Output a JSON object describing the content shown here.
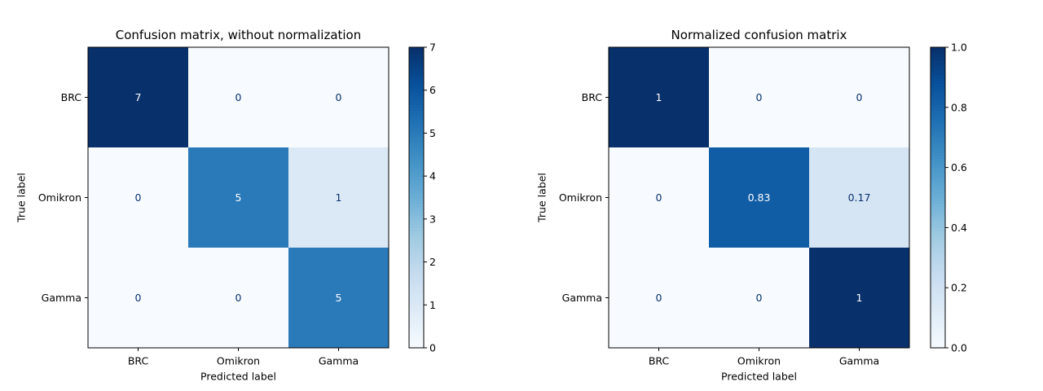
{
  "chart_data": [
    {
      "type": "heatmap",
      "title": "Confusion matrix, without normalization",
      "xlabel": "Predicted label",
      "ylabel": "True label",
      "x_categories": [
        "BRC",
        "Omikron",
        "Gamma"
      ],
      "y_categories": [
        "BRC",
        "Omikron",
        "Gamma"
      ],
      "values": [
        [
          7,
          0,
          0
        ],
        [
          0,
          5,
          1
        ],
        [
          0,
          0,
          5
        ]
      ],
      "cell_labels": [
        [
          "7",
          "0",
          "0"
        ],
        [
          "0",
          "5",
          "1"
        ],
        [
          "0",
          "0",
          "5"
        ]
      ],
      "colormap": "Blues",
      "colorbar": {
        "range": [
          0,
          7
        ],
        "ticks": [
          0,
          1,
          2,
          3,
          4,
          5,
          6,
          7
        ],
        "tick_labels": [
          "0",
          "1",
          "2",
          "3",
          "4",
          "5",
          "6",
          "7"
        ]
      },
      "grid": false
    },
    {
      "type": "heatmap",
      "title": "Normalized confusion matrix",
      "xlabel": "Predicted label",
      "ylabel": "True label",
      "x_categories": [
        "BRC",
        "Omikron",
        "Gamma"
      ],
      "y_categories": [
        "BRC",
        "Omikron",
        "Gamma"
      ],
      "values": [
        [
          1,
          0,
          0
        ],
        [
          0,
          0.83,
          0.17
        ],
        [
          0,
          0,
          1
        ]
      ],
      "cell_labels": [
        [
          "1",
          "0",
          "0"
        ],
        [
          "0",
          "0.83",
          "0.17"
        ],
        [
          "0",
          "0",
          "1"
        ]
      ],
      "colormap": "Blues",
      "colorbar": {
        "range": [
          0,
          1
        ],
        "ticks": [
          0,
          0.2,
          0.4,
          0.6,
          0.8,
          1.0
        ],
        "tick_labels": [
          "0.0",
          "0.2",
          "0.4",
          "0.6",
          "0.8",
          "1.0"
        ]
      },
      "grid": false
    }
  ]
}
